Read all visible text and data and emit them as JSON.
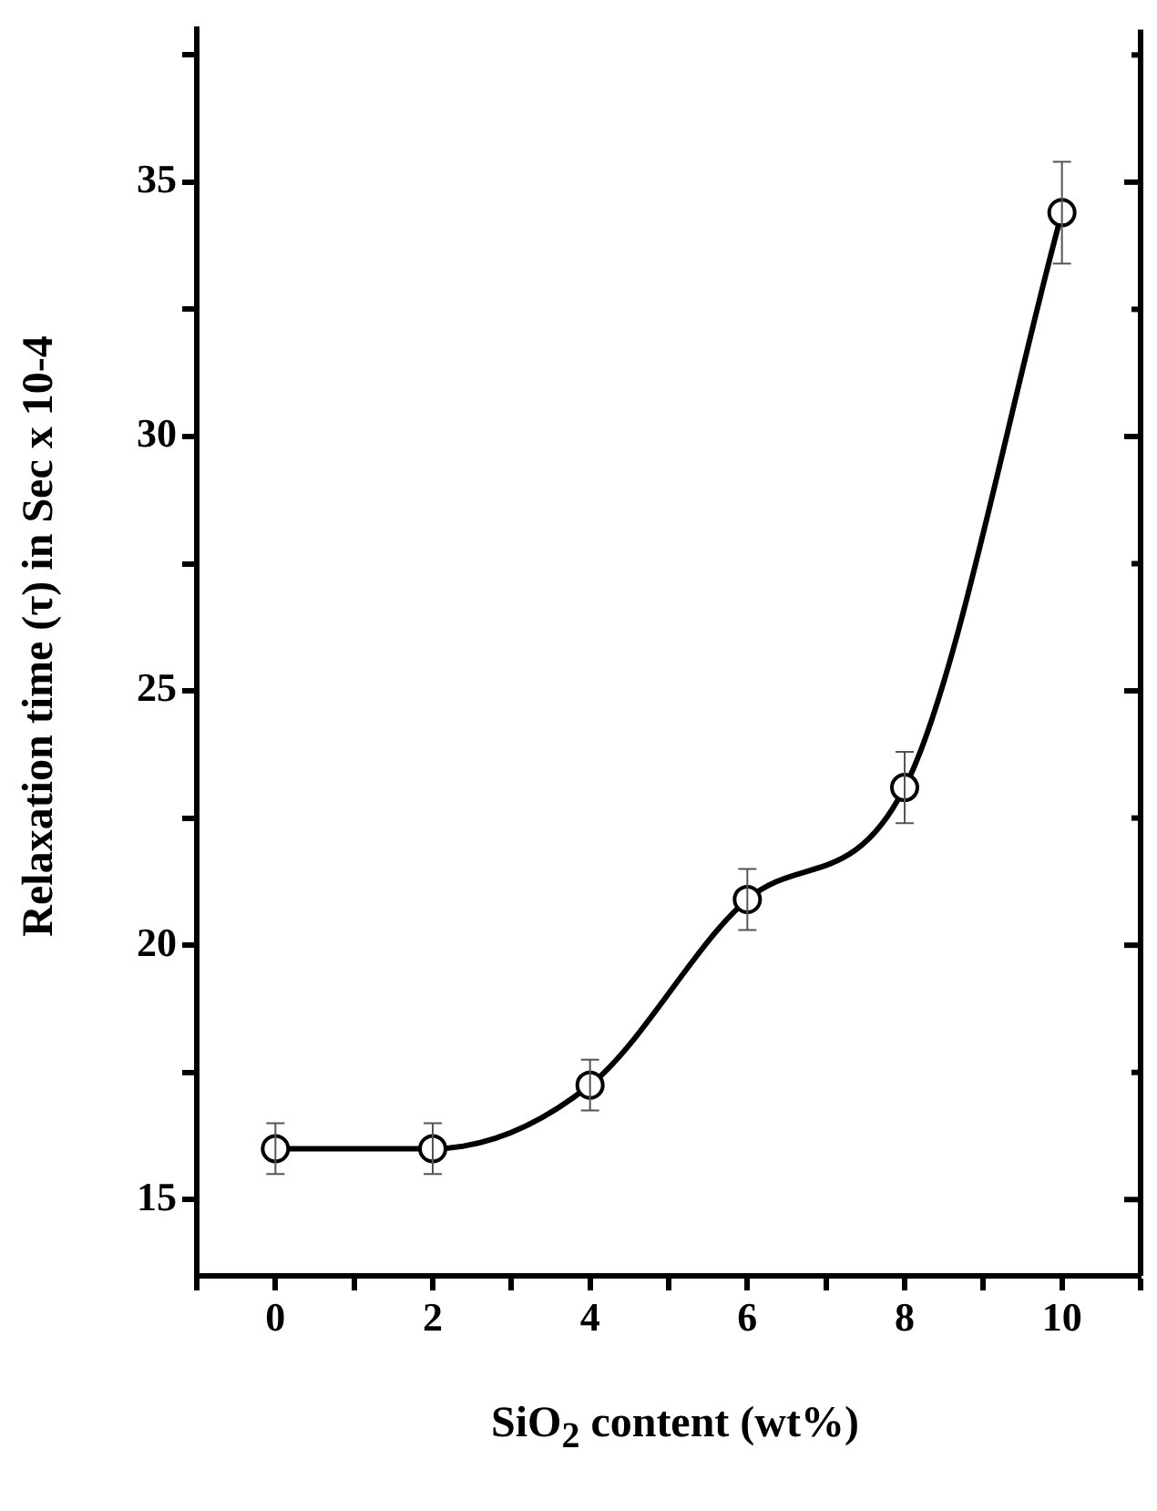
{
  "chart_data": {
    "type": "line",
    "xlabel": "SiO$_{2}$ content (wt%)",
    "ylabel": "Relaxation time (τ) in Sec x 10-4",
    "x": [
      0,
      2,
      4,
      6,
      8,
      10
    ],
    "values": [
      16,
      16,
      17.25,
      20.9,
      23.1,
      34.4
    ],
    "errors": [
      0.5,
      0.5,
      0.5,
      0.6,
      0.7,
      1.0
    ],
    "color": "#000000",
    "marker": "circle",
    "grid": false,
    "xlim": [
      -1,
      11
    ],
    "xticks": [
      {
        "value": -1,
        "label": null
      },
      0,
      {
        "value": 1,
        "label": null
      },
      2,
      {
        "value": 3,
        "label": null
      },
      4,
      {
        "value": 5,
        "label": null
      },
      6,
      {
        "value": 7,
        "label": null
      },
      8,
      {
        "value": 9,
        "label": null
      },
      10,
      {
        "value": 11,
        "label": null
      }
    ],
    "ylim": [
      13.5,
      38
    ],
    "yticks": [
      15,
      {
        "value": 17.5,
        "label": null
      },
      20,
      {
        "value": 22.5,
        "label": null
      },
      25,
      {
        "value": 27.5,
        "label": null
      },
      30,
      {
        "value": 32.5,
        "label": null
      },
      35,
      {
        "value": 37.5,
        "label": null
      }
    ]
  }
}
